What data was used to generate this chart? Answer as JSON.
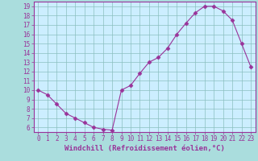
{
  "hours": [
    0,
    1,
    2,
    3,
    4,
    5,
    6,
    7,
    8,
    9,
    10,
    11,
    12,
    13,
    14,
    15,
    16,
    17,
    18,
    19,
    20,
    21,
    22,
    23
  ],
  "temps": [
    10.0,
    9.5,
    8.5,
    7.5,
    7.0,
    6.5,
    6.0,
    5.8,
    5.7,
    10.0,
    10.5,
    11.8,
    13.0,
    13.5,
    14.5,
    16.0,
    17.2,
    18.3,
    19.0,
    19.0,
    18.5,
    17.5,
    15.0,
    12.5
  ],
  "line_color": "#993399",
  "marker": "D",
  "marker_size": 2.5,
  "bg_color": "#aadddd",
  "grid_color": "#8bbfbf",
  "xlabel": "Windchill (Refroidissement éolien,°C)",
  "xlim": [
    -0.5,
    23.5
  ],
  "ylim": [
    5.5,
    19.5
  ],
  "yticks": [
    6,
    7,
    8,
    9,
    10,
    11,
    12,
    13,
    14,
    15,
    16,
    17,
    18,
    19
  ],
  "xticks": [
    0,
    1,
    2,
    3,
    4,
    5,
    6,
    7,
    8,
    9,
    10,
    11,
    12,
    13,
    14,
    15,
    16,
    17,
    18,
    19,
    20,
    21,
    22,
    23
  ],
  "xlabel_color": "#993399",
  "axis_label_fontsize": 6.5,
  "tick_fontsize": 5.5,
  "axis_bg": "#cceeff"
}
